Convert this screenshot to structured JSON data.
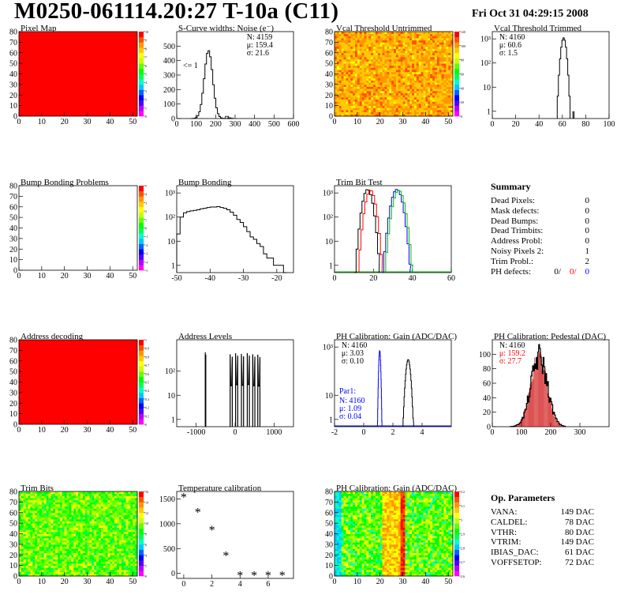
{
  "header": {
    "title": "M0250-061114.20:27 T-10a (C11)",
    "datetime": "Fri Oct 31 04:29:15 2008"
  },
  "summary": {
    "title": "Summary",
    "rows": [
      {
        "label": "Dead Pixels:",
        "value": "0"
      },
      {
        "label": "Mask defects:",
        "value": "0"
      },
      {
        "label": "Dead Bumps:",
        "value": "0"
      },
      {
        "label": "Dead Trimbits:",
        "value": "0"
      },
      {
        "label": "Address Probl:",
        "value": "0"
      },
      {
        "label": "Noisy Pixels 2:",
        "value": "1"
      },
      {
        "label": "Trim Probl.:",
        "value": "2"
      }
    ],
    "ph": {
      "label": "PH defects:",
      "v1": "0/",
      "v2": "0/",
      "v3": "0",
      "c2": "#ff0000",
      "c3": "#0000ff"
    }
  },
  "op": {
    "title": "Op. Parameters",
    "rows": [
      {
        "label": "VANA:",
        "value": "149 DAC"
      },
      {
        "label": "CALDEL:",
        "value": "78 DAC"
      },
      {
        "label": "VTHR:",
        "value": "80 DAC"
      },
      {
        "label": "VTRIM:",
        "value": "149 DAC"
      },
      {
        "label": "IBIAS_DAC:",
        "value": "61 DAC"
      },
      {
        "label": "VOFFSETOP:",
        "value": "72 DAC"
      }
    ]
  },
  "chart_data": [
    {
      "id": "pixel-map",
      "type": "heatmap",
      "title": "Pixel Map",
      "xlim": [
        0,
        52
      ],
      "ylim": [
        0,
        80
      ],
      "xticks": [
        "0",
        "10",
        "20",
        "30",
        "40",
        "50"
      ],
      "yticks": [
        "0",
        "10",
        "20",
        "30",
        "40",
        "50",
        "60",
        "70",
        "80"
      ],
      "fill": "uniform",
      "color": "#ff0000",
      "zlim": [
        0,
        10
      ],
      "zticks": [
        "0",
        "1",
        "2",
        "3",
        "4",
        "5",
        "6",
        "7",
        "8",
        "9",
        "10"
      ]
    },
    {
      "id": "scurve",
      "type": "histogram",
      "title": "S-Curve widths: Noise (e⁻)",
      "xlim": [
        0,
        600
      ],
      "ylim": [
        0,
        600
      ],
      "xticks": [
        "0",
        "100",
        "200",
        "300",
        "400",
        "500",
        "600"
      ],
      "yticks": [
        "0",
        "100",
        "200",
        "300",
        "400",
        "500"
      ],
      "stats": [
        "N: 4159",
        "μ: 159.4",
        "σ: 21.6"
      ],
      "annotation": "<= 1",
      "gauss": {
        "mean": 159.4,
        "sigma": 21.6,
        "peak": 470
      },
      "tail": [
        {
          "x": 250,
          "y": 15
        },
        {
          "x": 262,
          "y": 5
        },
        {
          "x": 275,
          "y": 2
        }
      ]
    },
    {
      "id": "vcal-untrimmed",
      "type": "heatmap",
      "title": "Vcal Threshold Untrimmed",
      "xlim": [
        0,
        52
      ],
      "ylim": [
        0,
        80
      ],
      "xticks": [
        "0",
        "10",
        "20",
        "30",
        "40",
        "50"
      ],
      "yticks": [
        "0",
        "10",
        "20",
        "30",
        "40",
        "50",
        "60",
        "70",
        "80"
      ],
      "fill": "noise-orange",
      "zlim": [
        0,
        140
      ],
      "zticks": [
        "0",
        "20",
        "40",
        "60",
        "80",
        "100",
        "120"
      ]
    },
    {
      "id": "vcal-trimmed",
      "type": "histogram",
      "title": "Vcal Threshold Trimmed",
      "xlim": [
        0,
        100
      ],
      "ylim": [
        0.5,
        2000
      ],
      "log": true,
      "xticks": [
        "0",
        "20",
        "40",
        "60",
        "80",
        "100"
      ],
      "yticks": [
        "1",
        "10",
        "10²",
        "10³"
      ],
      "stats": [
        "N: 4160",
        "μ: 60.6",
        "σ:  1.5"
      ],
      "gauss": {
        "mean": 60.6,
        "sigma": 1.5,
        "peak": 1100
      },
      "tail": [
        {
          "x": 69,
          "y": 1
        },
        {
          "x": 70,
          "y": 1
        }
      ]
    },
    {
      "id": "bump-problems",
      "type": "heatmap",
      "title": "Bump Bonding Problems",
      "xlim": [
        0,
        52
      ],
      "ylim": [
        0,
        80
      ],
      "xticks": [
        "0",
        "10",
        "20",
        "30",
        "40",
        "50"
      ],
      "yticks": [
        "0",
        "10",
        "20",
        "30",
        "40",
        "50",
        "60",
        "70",
        "80"
      ],
      "fill": "empty",
      "zlim": [
        -5,
        5
      ],
      "zticks": [
        "-5",
        "-4",
        "-3",
        "-2",
        "-1",
        "0",
        "1",
        "2",
        "3",
        "4",
        "5"
      ]
    },
    {
      "id": "bump-bonding",
      "type": "histogram",
      "title": "Bump Bonding",
      "xlim": [
        -50,
        -15
      ],
      "ylim": [
        0.5,
        2000
      ],
      "log": true,
      "xticks": [
        "-50",
        "-40",
        "-30",
        "-20"
      ],
      "yticks": [
        "1",
        "10",
        "10²",
        "10³"
      ],
      "bins": [
        [
          -50,
          20
        ],
        [
          -49,
          100
        ],
        [
          -48,
          150
        ],
        [
          -47,
          170
        ],
        [
          -46,
          180
        ],
        [
          -45,
          190
        ],
        [
          -44,
          200
        ],
        [
          -43,
          220
        ],
        [
          -42,
          230
        ],
        [
          -41,
          250
        ],
        [
          -40,
          260
        ],
        [
          -39,
          260
        ],
        [
          -38,
          270
        ],
        [
          -37,
          250
        ],
        [
          -36,
          230
        ],
        [
          -35,
          200
        ],
        [
          -34,
          160
        ],
        [
          -33,
          120
        ],
        [
          -32,
          80
        ],
        [
          -31,
          60
        ],
        [
          -30,
          40
        ],
        [
          -29,
          25
        ],
        [
          -28,
          15
        ],
        [
          -27,
          12
        ],
        [
          -26,
          8
        ],
        [
          -25,
          6
        ],
        [
          -24,
          3
        ],
        [
          -23,
          2
        ],
        [
          -22,
          2
        ],
        [
          -21,
          1
        ],
        [
          -20,
          1
        ],
        [
          -19,
          1
        ],
        [
          -18,
          0
        ]
      ]
    },
    {
      "id": "trim-bit-test",
      "type": "line",
      "title": "Trim Bit Test",
      "xlim": [
        0,
        60
      ],
      "ylim": [
        0.5,
        2000
      ],
      "log": true,
      "xticks": [
        "0",
        "20",
        "40",
        "60"
      ],
      "yticks": [
        "1",
        "10",
        "10²",
        "10³"
      ],
      "series": [
        {
          "color": "#000000",
          "mean": 16.5,
          "sigma": 1.6,
          "peak": 1400
        },
        {
          "color": "#ff0000",
          "mean": 18.0,
          "sigma": 1.6,
          "peak": 1300
        },
        {
          "color": "#0000ff",
          "mean": 31.5,
          "sigma": 1.8,
          "peak": 1400
        },
        {
          "color": "#00bb00",
          "mean": 32.5,
          "sigma": 1.8,
          "peak": 1300
        }
      ]
    },
    {
      "id": "address-decoding",
      "type": "heatmap",
      "title": "Address decoding",
      "xlim": [
        0,
        52
      ],
      "ylim": [
        0,
        80
      ],
      "xticks": [
        "0",
        "10",
        "20",
        "30",
        "40",
        "50"
      ],
      "yticks": [
        "0",
        "10",
        "20",
        "30",
        "40",
        "50",
        "60",
        "70",
        "80"
      ],
      "fill": "uniform",
      "color": "#ff0000",
      "zlim": [
        0,
        1
      ],
      "zticks": [
        "0",
        "0.1",
        "0.2",
        "0.3",
        "0.4",
        "0.5",
        "0.6",
        "0.7",
        "0.8",
        "0.9",
        "1"
      ]
    },
    {
      "id": "address-levels",
      "type": "histogram",
      "title": "Address Levels",
      "xlim": [
        -1500,
        1500
      ],
      "ylim": [
        0.5,
        2000
      ],
      "log": true,
      "xticks": [
        "-1000",
        "0",
        "1000"
      ],
      "yticks": [
        "1",
        "10",
        "10²"
      ],
      "peaks": [
        {
          "x": -760,
          "w": 14,
          "h": 600
        },
        {
          "x": -100,
          "w": 55,
          "h": 500
        },
        {
          "x": 40,
          "w": 55,
          "h": 550
        },
        {
          "x": 190,
          "w": 55,
          "h": 520
        },
        {
          "x": 340,
          "w": 55,
          "h": 560
        },
        {
          "x": 480,
          "w": 55,
          "h": 500
        },
        {
          "x": 610,
          "w": 55,
          "h": 480
        }
      ]
    },
    {
      "id": "ph-gain",
      "type": "histogram",
      "title": "PH Calibration: Gain (ADC/DAC)",
      "xlim": [
        -2,
        6
      ],
      "ylim": [
        0.5,
        2000
      ],
      "log": true,
      "xticks": [
        "-2",
        "0",
        "2",
        "4"
      ],
      "yticks": [
        "1",
        "10",
        "10³"
      ],
      "stats": [
        "N: 4160",
        "μ: 3.03",
        "σ: 0.10"
      ],
      "par1": {
        "label": "Par1:",
        "lines": [
          "N: 4160",
          "μ: 1.09",
          "σ: 0.04"
        ],
        "color": "#0000ff"
      },
      "series": [
        {
          "color": "#000000",
          "mean": 3.03,
          "sigma": 0.1,
          "peak": 300
        },
        {
          "color": "#0000ff",
          "mean": 1.09,
          "sigma": 0.04,
          "peak": 700
        }
      ]
    },
    {
      "id": "ph-pedestal",
      "type": "histogram",
      "title": "PH Calibration: Pedestal (DAC)",
      "xlim": [
        0,
        400
      ],
      "ylim": [
        0,
        120
      ],
      "xticks": [
        "0",
        "100",
        "200",
        "300"
      ],
      "yticks": [
        "0",
        "20",
        "40",
        "60",
        "80",
        "100"
      ],
      "stats": [
        "N: 4160",
        "μ: 159.2",
        "σ: 27.7"
      ],
      "stats_colors": [
        "#000000",
        "#ff0000",
        "#ff0000"
      ],
      "gauss": {
        "mean": 159.2,
        "sigma": 27.7,
        "peak": 96
      }
    },
    {
      "id": "trim-bits",
      "type": "heatmap",
      "title": "Trim Bits",
      "xlim": [
        0,
        52
      ],
      "ylim": [
        0,
        80
      ],
      "xticks": [
        "0",
        "10",
        "20",
        "30",
        "40",
        "50"
      ],
      "yticks": [
        "0",
        "10",
        "20",
        "30",
        "40",
        "50",
        "60",
        "70",
        "80"
      ],
      "fill": "noise-green",
      "zlim": [
        0,
        16
      ],
      "zticks": [
        "0",
        "2",
        "4",
        "6",
        "8",
        "10",
        "12",
        "14",
        "16"
      ]
    },
    {
      "id": "temperature",
      "type": "scatter",
      "title": "Temperature calibration",
      "xlim": [
        -0.5,
        7.8
      ],
      "ylim": [
        -100,
        1650
      ],
      "xticks": [
        "0",
        "2",
        "4",
        "6"
      ],
      "yticks": [
        "0",
        "500",
        "1000",
        "1500"
      ],
      "x": [
        0,
        1,
        2,
        3,
        4,
        5,
        6,
        7
      ],
      "y": [
        1530,
        1230,
        870,
        350,
        -45,
        -45,
        -45,
        -45
      ]
    },
    {
      "id": "ph-gain-map",
      "type": "heatmap",
      "title": "PH Calibration: Gain (ADC/DAC)",
      "xlim": [
        0,
        52
      ],
      "ylim": [
        0,
        80
      ],
      "xticks": [
        "0",
        "10",
        "20",
        "30",
        "40",
        "50"
      ],
      "yticks": [
        "0",
        "10",
        "20",
        "30",
        "40",
        "50",
        "60",
        "70",
        "80"
      ],
      "fill": "noise-columns",
      "zlim": [
        2.6,
        3.3
      ],
      "zticks": [
        "2.6",
        "2.7",
        "2.8",
        "2.9",
        "3",
        "3.1",
        "3.2"
      ]
    }
  ]
}
